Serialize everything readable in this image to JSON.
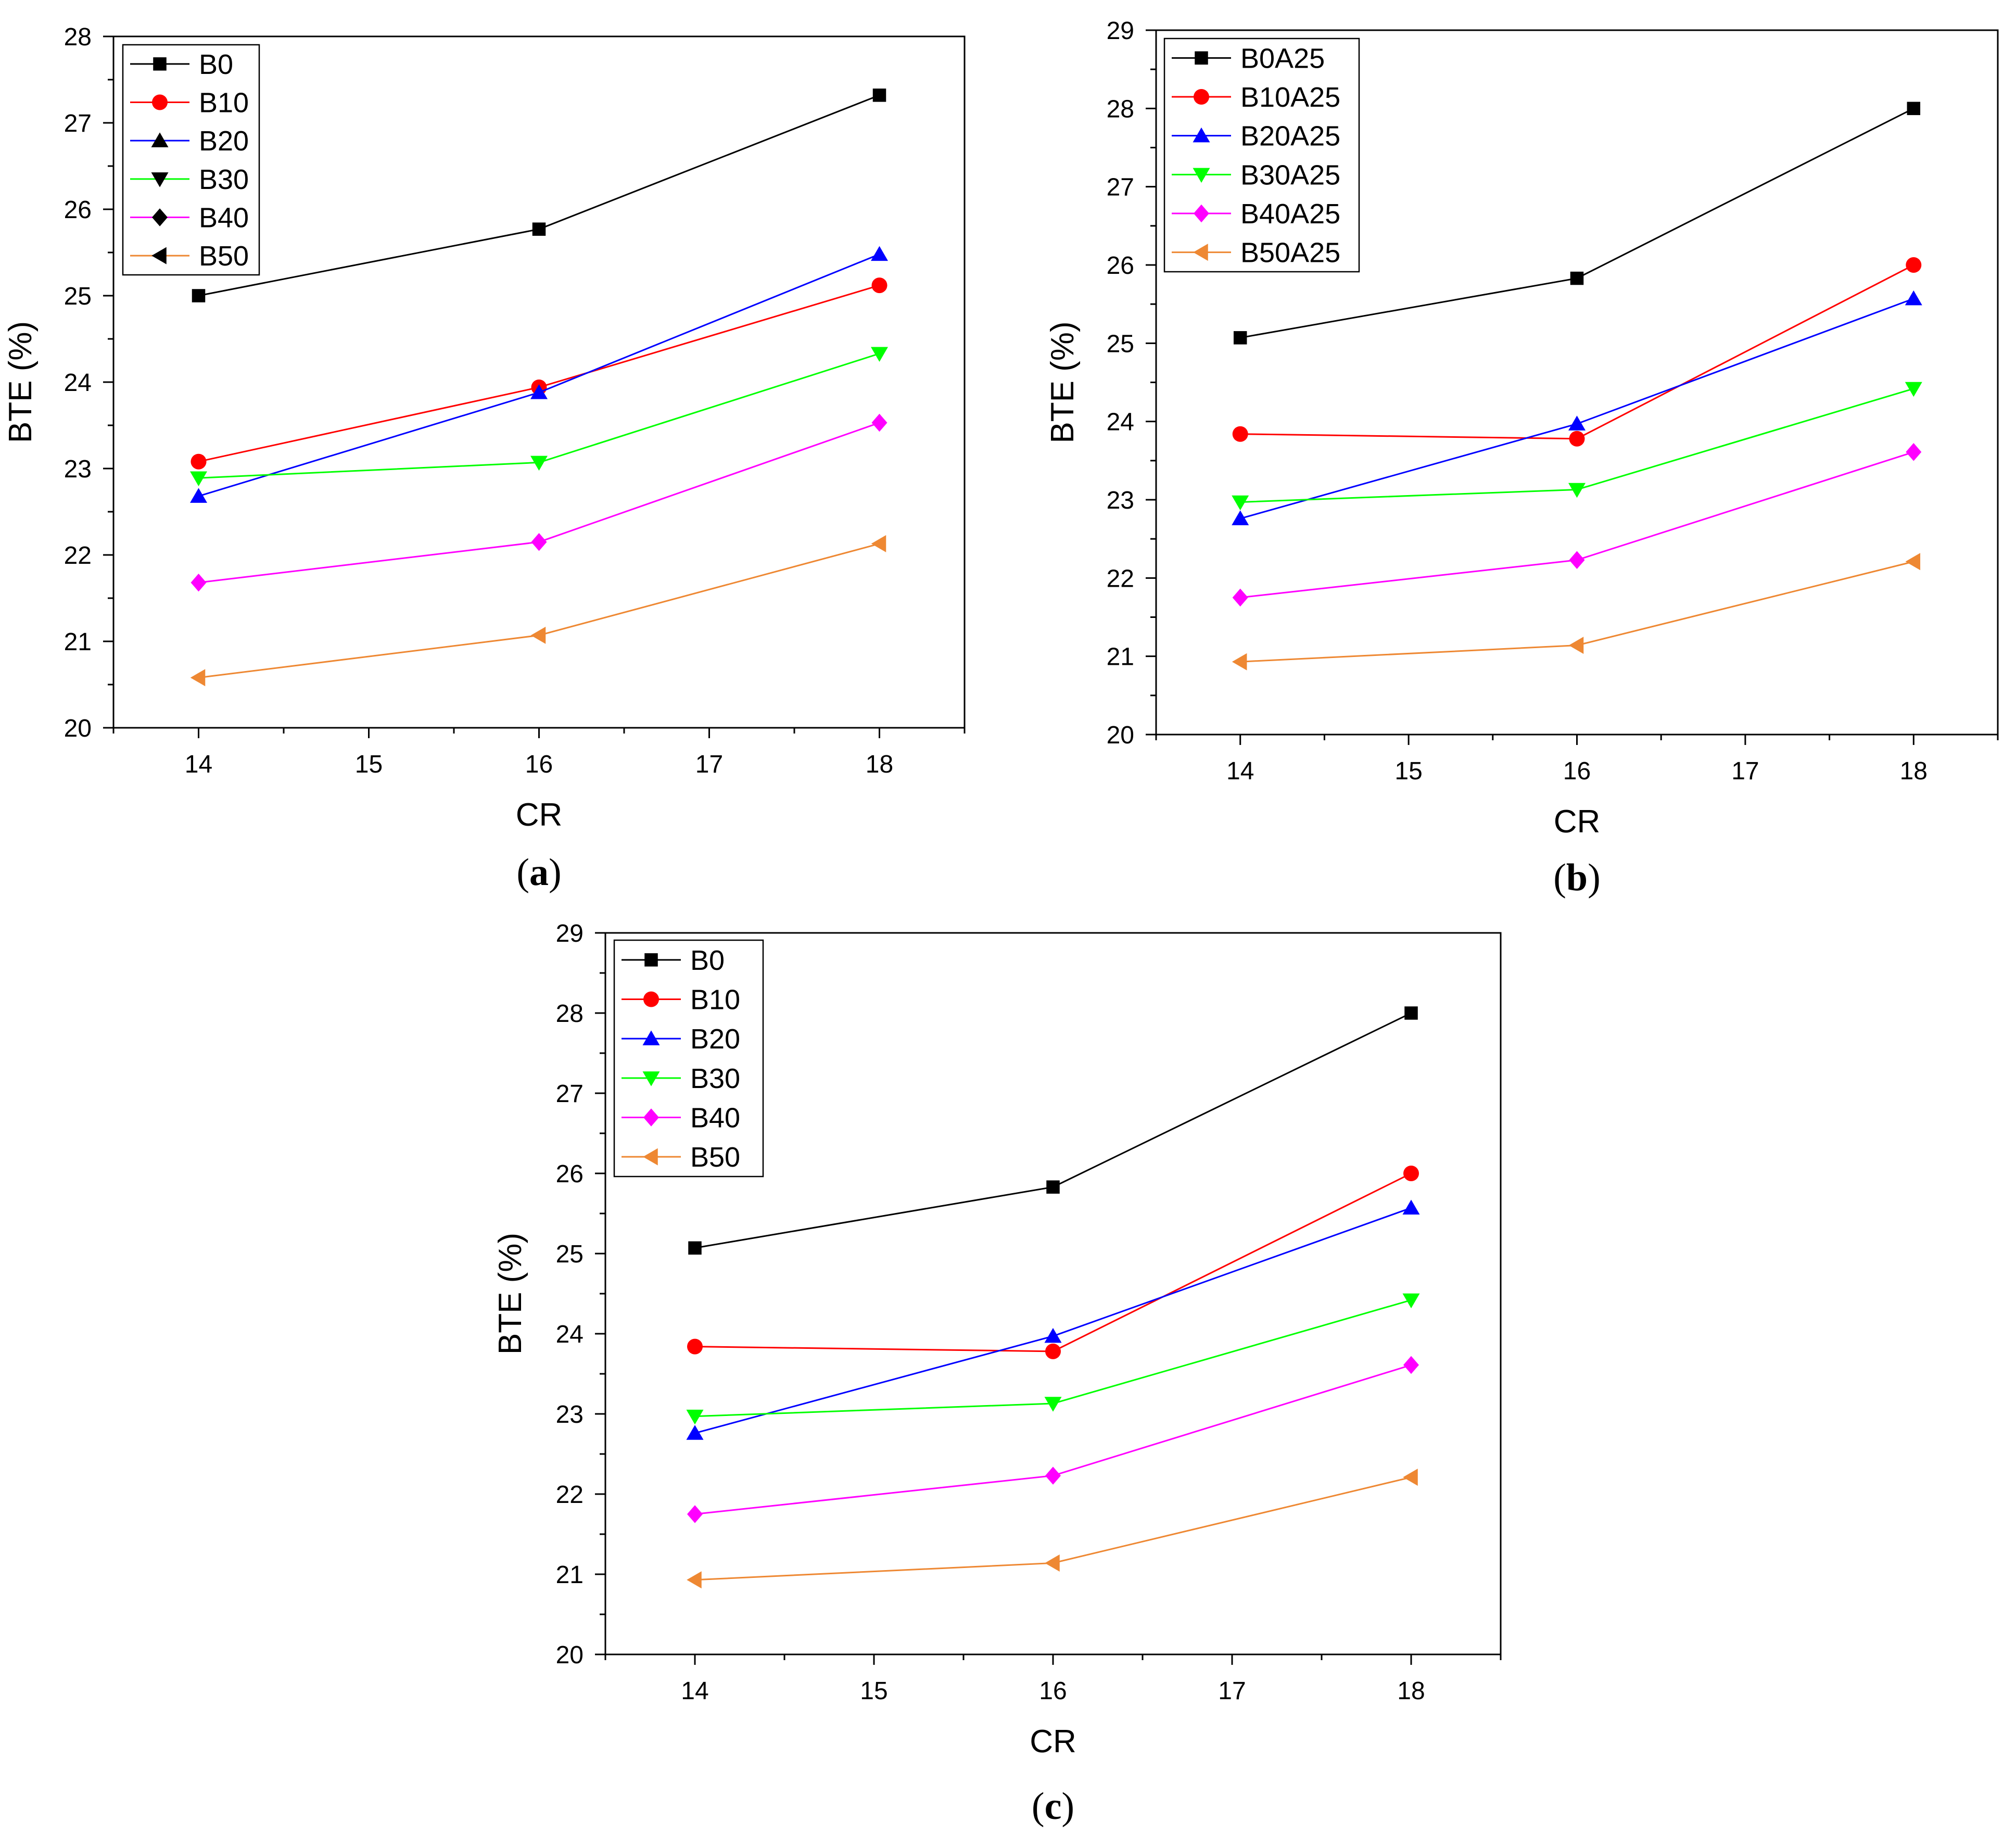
{
  "chart_data": [
    {
      "type": "line",
      "panel": "a",
      "caption": "a",
      "xlabel": "CR",
      "ylabel": "BTE (%)",
      "xlim": [
        13.5,
        18.5
      ],
      "ylim": [
        20,
        28
      ],
      "xticks": [
        "14",
        "15",
        "16",
        "17",
        "18"
      ],
      "yticks": [
        "20",
        "21",
        "22",
        "23",
        "24",
        "25",
        "26",
        "27",
        "28"
      ],
      "x": [
        14,
        16,
        18
      ],
      "legend_position": "top-left",
      "series": [
        {
          "name": "B0",
          "color": "#000000",
          "marker": "square",
          "legend_marker_color": "#000000",
          "values": [
            25.0,
            25.77,
            27.32
          ]
        },
        {
          "name": "B10",
          "color": "#ff0000",
          "marker": "circle",
          "legend_marker_color": "#ff0000",
          "values": [
            23.08,
            23.94,
            25.12
          ]
        },
        {
          "name": "B20",
          "color": "#0000ff",
          "marker": "triangle-up",
          "legend_marker_color": "#000000",
          "values": [
            22.68,
            23.88,
            25.48
          ]
        },
        {
          "name": "B30",
          "color": "#00ff00",
          "marker": "triangle-down",
          "legend_marker_color": "#000000",
          "values": [
            22.89,
            23.07,
            24.33
          ]
        },
        {
          "name": "B40",
          "color": "#ff00ff",
          "marker": "diamond",
          "legend_marker_color": "#000000",
          "values": [
            21.68,
            22.15,
            23.53
          ]
        },
        {
          "name": "B50",
          "color": "#ee8833",
          "marker": "triangle-left",
          "legend_marker_color": "#000000",
          "values": [
            20.58,
            21.07,
            22.13
          ]
        }
      ]
    },
    {
      "type": "line",
      "panel": "b",
      "caption": "b",
      "xlabel": "CR",
      "ylabel": "BTE (%)",
      "xlim": [
        13.5,
        18.5
      ],
      "ylim": [
        20,
        29
      ],
      "xticks": [
        "14",
        "15",
        "16",
        "17",
        "18"
      ],
      "yticks": [
        "20",
        "21",
        "22",
        "23",
        "24",
        "25",
        "26",
        "27",
        "28",
        "29"
      ],
      "x": [
        14,
        16,
        18
      ],
      "legend_position": "top-left",
      "series": [
        {
          "name": "B0A25",
          "color": "#000000",
          "marker": "square",
          "legend_marker_color": "#000000",
          "values": [
            25.07,
            25.83,
            28.0
          ]
        },
        {
          "name": "B10A25",
          "color": "#ff0000",
          "marker": "circle",
          "legend_marker_color": "#ff0000",
          "values": [
            23.84,
            23.78,
            26.0
          ]
        },
        {
          "name": "B20A25",
          "color": "#0000ff",
          "marker": "triangle-up",
          "legend_marker_color": "#0000ff",
          "values": [
            22.76,
            23.97,
            25.57
          ]
        },
        {
          "name": "B30A25",
          "color": "#00ff00",
          "marker": "triangle-down",
          "legend_marker_color": "#00ff00",
          "values": [
            22.97,
            23.13,
            24.42
          ]
        },
        {
          "name": "B40A25",
          "color": "#ff00ff",
          "marker": "diamond",
          "legend_marker_color": "#ff00ff",
          "values": [
            21.75,
            22.23,
            23.61
          ]
        },
        {
          "name": "B50A25",
          "color": "#ee8833",
          "marker": "triangle-left",
          "legend_marker_color": "#ee8833",
          "values": [
            20.93,
            21.14,
            22.21
          ]
        }
      ]
    },
    {
      "type": "line",
      "panel": "c",
      "caption": "c",
      "xlabel": "CR",
      "ylabel": "BTE (%)",
      "xlim": [
        13.5,
        18.5
      ],
      "ylim": [
        20,
        29
      ],
      "xticks": [
        "14",
        "15",
        "16",
        "17",
        "18"
      ],
      "yticks": [
        "20",
        "21",
        "22",
        "23",
        "24",
        "25",
        "26",
        "27",
        "28",
        "29"
      ],
      "x": [
        14,
        16,
        18
      ],
      "legend_position": "top-left",
      "series": [
        {
          "name": "B0",
          "color": "#000000",
          "marker": "square",
          "legend_marker_color": "#000000",
          "values": [
            25.07,
            25.83,
            28.0
          ]
        },
        {
          "name": "B10",
          "color": "#ff0000",
          "marker": "circle",
          "legend_marker_color": "#ff0000",
          "values": [
            23.84,
            23.78,
            26.0
          ]
        },
        {
          "name": "B20",
          "color": "#0000ff",
          "marker": "triangle-up",
          "legend_marker_color": "#0000ff",
          "values": [
            22.76,
            23.97,
            25.57
          ]
        },
        {
          "name": "B30",
          "color": "#00ff00",
          "marker": "triangle-down",
          "legend_marker_color": "#00ff00",
          "values": [
            22.97,
            23.13,
            24.42
          ]
        },
        {
          "name": "B40",
          "color": "#ff00ff",
          "marker": "diamond",
          "legend_marker_color": "#ff00ff",
          "values": [
            21.75,
            22.23,
            23.61
          ]
        },
        {
          "name": "B50",
          "color": "#ee8833",
          "marker": "triangle-left",
          "legend_marker_color": "#ee8833",
          "values": [
            20.93,
            21.14,
            22.21
          ]
        }
      ]
    }
  ]
}
